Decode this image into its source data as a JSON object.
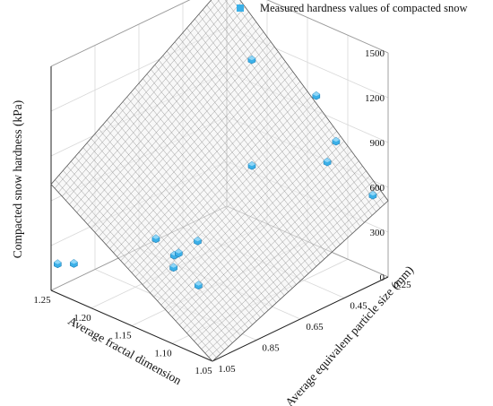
{
  "chart_data": {
    "type": "scatter3d_with_surface",
    "legend": {
      "label": "Measured hardness values of compacted snow",
      "marker_color": "#3bb0e8",
      "placement": "top-right"
    },
    "axes": {
      "x": {
        "label": "Average equivalent particle size (mm)",
        "ticks": [
          "0.25",
          "0.45",
          "0.65",
          "0.85",
          "1.05"
        ],
        "range": [
          0.25,
          1.05
        ]
      },
      "y": {
        "label": "Average fractal dimension",
        "ticks": [
          "1.05",
          "1.10",
          "1.15",
          "1.20",
          "1.25"
        ],
        "range": [
          1.05,
          1.25
        ]
      },
      "z": {
        "label": "Compacted snow hardness (kPa)",
        "ticks": [
          "0",
          "300",
          "600",
          "900",
          "1200",
          "1500"
        ],
        "range": [
          0,
          1500
        ]
      }
    },
    "grid": true,
    "surface": {
      "type": "fitted plane",
      "corners": [
        {
          "x": 0.25,
          "y": 1.05,
          "z": 510
        },
        {
          "x": 0.25,
          "y": 1.25,
          "z": 1500
        },
        {
          "x": 1.05,
          "y": 1.05,
          "z": 0
        },
        {
          "x": 1.05,
          "y": 1.25,
          "z": 710
        }
      ],
      "color": "#8a8a8a"
    },
    "points": [
      {
        "x": 0.43,
        "y": 1.17,
        "z": 1300
      },
      {
        "x": 0.32,
        "y": 1.12,
        "z": 1100
      },
      {
        "x": 0.34,
        "y": 1.09,
        "z": 880
      },
      {
        "x": 0.38,
        "y": 1.09,
        "z": 770
      },
      {
        "x": 0.54,
        "y": 1.14,
        "z": 740
      },
      {
        "x": 0.32,
        "y": 1.05,
        "z": 600
      },
      {
        "x": 0.83,
        "y": 1.18,
        "z": 360
      },
      {
        "x": 0.75,
        "y": 1.15,
        "z": 360
      },
      {
        "x": 0.82,
        "y": 1.16,
        "z": 290
      },
      {
        "x": 0.8,
        "y": 1.16,
        "z": 290
      },
      {
        "x": 0.86,
        "y": 1.15,
        "z": 260
      },
      {
        "x": 0.82,
        "y": 1.13,
        "z": 160
      },
      {
        "x": 1.02,
        "y": 1.23,
        "z": 210
      },
      {
        "x": 1.02,
        "y": 1.25,
        "z": 160
      }
    ]
  }
}
